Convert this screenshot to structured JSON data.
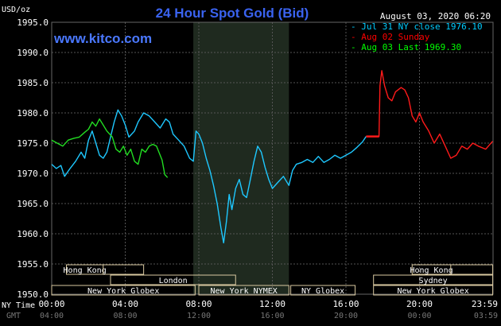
{
  "header": {
    "unit": "USD/oz",
    "title": "24 Hour Spot Gold (Bid)",
    "date": "August 03, 2020 06:20",
    "site": "www.kitco.com"
  },
  "legend": [
    {
      "label": "Jul 31 NY close 1976.10",
      "color": "#00ccff"
    },
    {
      "label": "Aug 02 Sunday",
      "color": "#ff0000"
    },
    {
      "label": "Aug 03 Last 1969.30",
      "color": "#00ff00"
    }
  ],
  "axis_titles": {
    "ny_time": "NY Time",
    "gmt": "GMT"
  },
  "colors": {
    "background": "#000000",
    "blue_series": "#1ec8ff",
    "red_series": "#ff1a1a",
    "green_series": "#22dd22",
    "session_box": "#d8c8a0",
    "shaded_period": "#1f2a1f"
  },
  "chart_data": {
    "type": "line",
    "ylim": [
      1950,
      1995
    ],
    "y_ticks": [
      "1995.0",
      "1990.0",
      "1985.0",
      "1980.0",
      "1975.0",
      "1970.0",
      "1965.0",
      "1960.0",
      "1955.0",
      "1950.0"
    ],
    "x_ticks_ny": [
      "00:00",
      "04:00",
      "08:00",
      "12:00",
      "16:00",
      "20:00",
      "23:59"
    ],
    "x_ticks_gmt": [
      "04:00",
      "08:00",
      "12:00",
      "16:00",
      "20:00",
      "00:00",
      "03:59"
    ],
    "shaded_period": [
      7.7,
      12.9
    ],
    "series": [
      {
        "name": "Jul 31 NY close 1976.10",
        "color": "#1ec8ff",
        "points": [
          [
            0.0,
            1971.5
          ],
          [
            0.25,
            1970.8
          ],
          [
            0.5,
            1971.3
          ],
          [
            0.7,
            1969.5
          ],
          [
            1.0,
            1970.8
          ],
          [
            1.3,
            1972.0
          ],
          [
            1.6,
            1973.5
          ],
          [
            1.8,
            1972.5
          ],
          [
            2.0,
            1975.5
          ],
          [
            2.2,
            1977.0
          ],
          [
            2.4,
            1975.0
          ],
          [
            2.6,
            1973.0
          ],
          [
            2.8,
            1972.5
          ],
          [
            3.0,
            1973.5
          ],
          [
            3.2,
            1976.0
          ],
          [
            3.4,
            1978.5
          ],
          [
            3.6,
            1980.5
          ],
          [
            3.8,
            1979.5
          ],
          [
            4.0,
            1978.0
          ],
          [
            4.2,
            1976.0
          ],
          [
            4.5,
            1977.0
          ],
          [
            4.7,
            1978.5
          ],
          [
            5.0,
            1980.0
          ],
          [
            5.3,
            1979.5
          ],
          [
            5.6,
            1978.5
          ],
          [
            5.9,
            1977.5
          ],
          [
            6.2,
            1979.0
          ],
          [
            6.4,
            1978.5
          ],
          [
            6.6,
            1976.5
          ],
          [
            6.9,
            1975.5
          ],
          [
            7.2,
            1974.5
          ],
          [
            7.5,
            1972.5
          ],
          [
            7.7,
            1972.0
          ],
          [
            7.85,
            1977.0
          ],
          [
            8.0,
            1976.5
          ],
          [
            8.2,
            1975.0
          ],
          [
            8.4,
            1972.5
          ],
          [
            8.6,
            1970.5
          ],
          [
            8.8,
            1968.0
          ],
          [
            9.0,
            1965.0
          ],
          [
            9.2,
            1961.0
          ],
          [
            9.35,
            1958.5
          ],
          [
            9.5,
            1962.0
          ],
          [
            9.65,
            1966.5
          ],
          [
            9.8,
            1964.0
          ],
          [
            10.0,
            1967.5
          ],
          [
            10.2,
            1969.0
          ],
          [
            10.4,
            1966.5
          ],
          [
            10.6,
            1966.0
          ],
          [
            10.8,
            1969.0
          ],
          [
            11.0,
            1972.0
          ],
          [
            11.2,
            1974.5
          ],
          [
            11.4,
            1973.5
          ],
          [
            11.6,
            1971.0
          ],
          [
            11.8,
            1969.0
          ],
          [
            12.0,
            1967.5
          ],
          [
            12.3,
            1968.5
          ],
          [
            12.6,
            1969.5
          ],
          [
            12.9,
            1968.0
          ],
          [
            13.1,
            1970.5
          ],
          [
            13.3,
            1971.5
          ],
          [
            13.6,
            1971.8
          ],
          [
            13.9,
            1972.3
          ],
          [
            14.2,
            1971.8
          ],
          [
            14.5,
            1972.8
          ],
          [
            14.8,
            1971.8
          ],
          [
            15.1,
            1972.3
          ],
          [
            15.4,
            1973.0
          ],
          [
            15.7,
            1972.5
          ],
          [
            16.0,
            1973.0
          ],
          [
            16.3,
            1973.5
          ],
          [
            16.6,
            1974.3
          ],
          [
            16.9,
            1975.2
          ],
          [
            17.1,
            1976.1
          ]
        ]
      },
      {
        "name": "Aug 02 Sunday",
        "color": "#ff1a1a",
        "points": [
          [
            17.1,
            1976.1
          ],
          [
            17.8,
            1976.1
          ],
          [
            17.85,
            1984.5
          ],
          [
            17.95,
            1987.0
          ],
          [
            18.1,
            1984.5
          ],
          [
            18.3,
            1982.5
          ],
          [
            18.5,
            1982.0
          ],
          [
            18.7,
            1983.5
          ],
          [
            19.0,
            1984.2
          ],
          [
            19.2,
            1983.8
          ],
          [
            19.4,
            1982.5
          ],
          [
            19.6,
            1979.5
          ],
          [
            19.8,
            1978.5
          ],
          [
            20.0,
            1980.0
          ],
          [
            20.2,
            1978.5
          ],
          [
            20.5,
            1977.0
          ],
          [
            20.8,
            1975.0
          ],
          [
            21.1,
            1976.5
          ],
          [
            21.4,
            1974.5
          ],
          [
            21.7,
            1972.5
          ],
          [
            22.0,
            1973.0
          ],
          [
            22.3,
            1974.5
          ],
          [
            22.6,
            1974.0
          ],
          [
            22.9,
            1975.0
          ],
          [
            23.2,
            1974.5
          ],
          [
            23.6,
            1974.0
          ],
          [
            23.98,
            1975.3
          ]
        ]
      },
      {
        "name": "Aug 03 Last 1969.30",
        "color": "#22dd22",
        "points": [
          [
            0.0,
            1975.5
          ],
          [
            0.3,
            1975.0
          ],
          [
            0.6,
            1974.5
          ],
          [
            0.9,
            1975.5
          ],
          [
            1.2,
            1975.8
          ],
          [
            1.5,
            1976.0
          ],
          [
            1.8,
            1976.8
          ],
          [
            2.0,
            1977.3
          ],
          [
            2.2,
            1978.5
          ],
          [
            2.4,
            1977.8
          ],
          [
            2.6,
            1979.0
          ],
          [
            2.8,
            1978.0
          ],
          [
            3.0,
            1977.0
          ],
          [
            3.3,
            1976.0
          ],
          [
            3.5,
            1974.0
          ],
          [
            3.7,
            1973.5
          ],
          [
            3.9,
            1974.5
          ],
          [
            4.1,
            1973.0
          ],
          [
            4.3,
            1974.0
          ],
          [
            4.5,
            1972.0
          ],
          [
            4.7,
            1971.5
          ],
          [
            4.9,
            1974.0
          ],
          [
            5.1,
            1973.5
          ],
          [
            5.3,
            1974.5
          ],
          [
            5.5,
            1974.8
          ],
          [
            5.7,
            1974.5
          ],
          [
            5.9,
            1973.0
          ],
          [
            6.0,
            1972.2
          ],
          [
            6.15,
            1969.8
          ],
          [
            6.3,
            1969.3
          ]
        ]
      }
    ],
    "sessions_top": [
      {
        "label": "Hong Kong",
        "start": 0.8,
        "end": 5.0,
        "end_label": 2.8
      },
      {
        "label": "Hong Kong",
        "start": 19.6,
        "end": 23.98,
        "end_label": 21.7
      }
    ],
    "sessions_mid": [
      {
        "label": "London",
        "start": 3.2,
        "end": 10.0
      },
      {
        "label": "Sydney",
        "start": 17.5,
        "end": 23.98
      }
    ],
    "sessions_bottom": [
      {
        "label": "New York Globex",
        "start": 0.0,
        "end": 7.8
      },
      {
        "label": "New York NYMEX",
        "start": 8.0,
        "end": 12.9
      },
      {
        "label": "NY Globex",
        "start": 13.0,
        "end": 16.5
      },
      {
        "label": "New York Globex",
        "start": 17.5,
        "end": 23.98
      }
    ]
  }
}
